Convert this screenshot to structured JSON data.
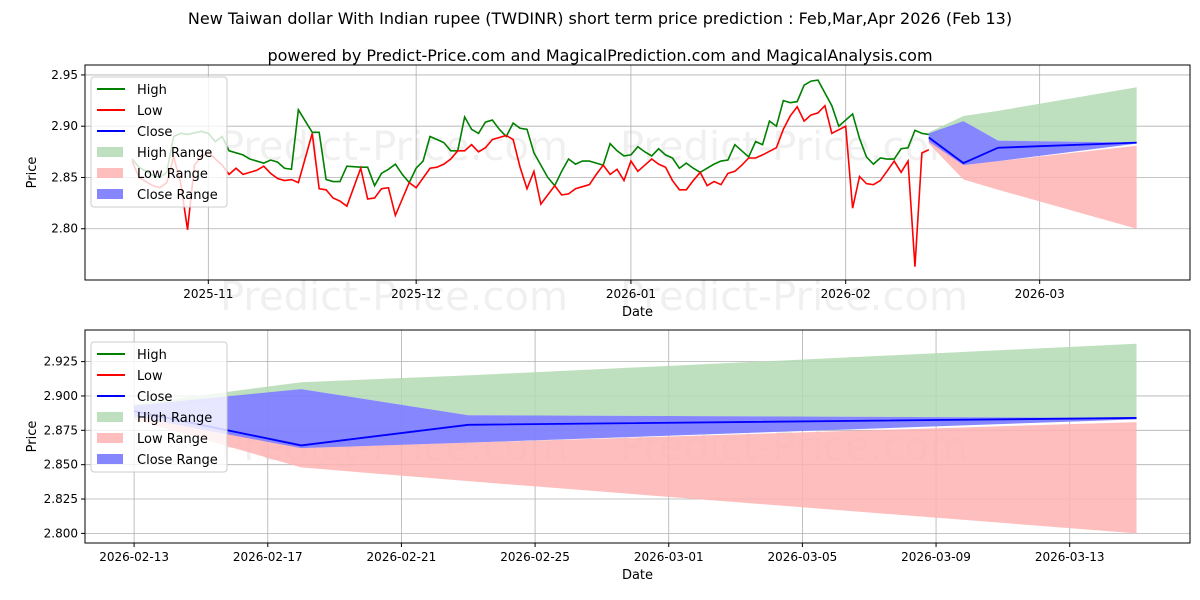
{
  "title": "New Taiwan dollar With Indian rupee (TWDINR) short term price prediction : Feb,Mar,Apr 2026 (Feb 13)",
  "subtitle": "powered by Predict-Price.com and MagicalPrediction.com and MagicalAnalysis.com",
  "watermark": "Predict-Price.com",
  "colors": {
    "high": "#008000",
    "low": "#ff0000",
    "close": "#0000ff",
    "high_range": "#b3dbb3",
    "low_range": "#ffb3b3",
    "close_range": "#7f7fff"
  },
  "chart_data": [
    {
      "type": "line",
      "x_unit": "days since 2025-10-21",
      "xlabel": "Date",
      "ylabel": "Price",
      "xlim": [
        -6.8,
        152.7
      ],
      "ylim": [
        2.75,
        2.9597
      ],
      "grid": true,
      "legend_placement": "top-left",
      "legend": [
        "High",
        "Low",
        "Close",
        "High Range",
        "Low Range",
        "Close Range"
      ],
      "x_ticks": [
        {
          "x": 11,
          "label": "2025-11"
        },
        {
          "x": 41,
          "label": "2025-12"
        },
        {
          "x": 72,
          "label": "2026-01"
        },
        {
          "x": 103,
          "label": "2026-02"
        },
        {
          "x": 131,
          "label": "2026-03"
        }
      ],
      "y_ticks": [
        {
          "y": 2.8,
          "label": "2.80"
        },
        {
          "y": 2.85,
          "label": "2.85"
        },
        {
          "y": 2.9,
          "label": "2.90"
        },
        {
          "y": 2.95,
          "label": "2.95"
        }
      ],
      "high": [
        [
          0,
          2.868
        ],
        [
          1,
          2.86
        ],
        [
          3,
          2.852
        ],
        [
          4,
          2.85
        ],
        [
          5,
          2.855
        ],
        [
          6,
          2.89
        ],
        [
          7,
          2.893
        ],
        [
          8,
          2.892
        ],
        [
          10,
          2.895
        ],
        [
          11,
          2.893
        ],
        [
          12,
          2.885
        ],
        [
          13,
          2.89
        ],
        [
          14,
          2.876
        ],
        [
          16,
          2.872
        ],
        [
          17,
          2.868
        ],
        [
          19,
          2.864
        ],
        [
          20,
          2.867
        ],
        [
          21,
          2.865
        ],
        [
          22,
          2.859
        ],
        [
          23,
          2.858
        ],
        [
          24,
          2.916
        ],
        [
          26,
          2.894
        ],
        [
          27,
          2.894
        ],
        [
          28,
          2.848
        ],
        [
          29,
          2.846
        ],
        [
          30,
          2.846
        ],
        [
          31,
          2.861
        ],
        [
          33,
          2.86
        ],
        [
          34,
          2.86
        ],
        [
          35,
          2.842
        ],
        [
          36,
          2.854
        ],
        [
          37,
          2.858
        ],
        [
          38,
          2.863
        ],
        [
          39,
          2.853
        ],
        [
          40,
          2.845
        ],
        [
          41,
          2.859
        ],
        [
          42,
          2.866
        ],
        [
          43,
          2.89
        ],
        [
          44,
          2.887
        ],
        [
          45,
          2.884
        ],
        [
          46,
          2.876
        ],
        [
          47,
          2.876
        ],
        [
          48,
          2.909
        ],
        [
          49,
          2.897
        ],
        [
          50,
          2.893
        ],
        [
          51,
          2.904
        ],
        [
          52,
          2.906
        ],
        [
          53,
          2.897
        ],
        [
          54,
          2.89
        ],
        [
          55,
          2.903
        ],
        [
          56,
          2.898
        ],
        [
          57,
          2.897
        ],
        [
          58,
          2.874
        ],
        [
          59,
          2.862
        ],
        [
          60,
          2.85
        ],
        [
          61,
          2.842
        ],
        [
          62,
          2.856
        ],
        [
          63,
          2.868
        ],
        [
          64,
          2.863
        ],
        [
          65,
          2.866
        ],
        [
          66,
          2.866
        ],
        [
          67,
          2.864
        ],
        [
          68,
          2.862
        ],
        [
          69,
          2.883
        ],
        [
          70,
          2.876
        ],
        [
          71,
          2.871
        ],
        [
          72,
          2.872
        ],
        [
          73,
          2.88
        ],
        [
          74,
          2.875
        ],
        [
          75,
          2.871
        ],
        [
          76,
          2.878
        ],
        [
          77,
          2.872
        ],
        [
          78,
          2.869
        ],
        [
          79,
          2.859
        ],
        [
          80,
          2.864
        ],
        [
          81,
          2.859
        ],
        [
          82,
          2.855
        ],
        [
          83,
          2.859
        ],
        [
          84,
          2.863
        ],
        [
          85,
          2.866
        ],
        [
          86,
          2.867
        ],
        [
          87,
          2.882
        ],
        [
          88,
          2.876
        ],
        [
          89,
          2.87
        ],
        [
          90,
          2.885
        ],
        [
          91,
          2.882
        ],
        [
          92,
          2.905
        ],
        [
          93,
          2.9
        ],
        [
          94,
          2.925
        ],
        [
          95,
          2.923
        ],
        [
          96,
          2.924
        ],
        [
          97,
          2.94
        ],
        [
          98,
          2.944
        ],
        [
          99,
          2.945
        ],
        [
          101,
          2.92
        ],
        [
          102,
          2.9
        ],
        [
          104,
          2.912
        ],
        [
          105,
          2.888
        ],
        [
          106,
          2.87
        ],
        [
          107,
          2.863
        ],
        [
          108,
          2.869
        ],
        [
          109,
          2.868
        ],
        [
          110,
          2.868
        ],
        [
          111,
          2.878
        ],
        [
          112,
          2.879
        ],
        [
          113,
          2.896
        ],
        [
          114,
          2.893
        ],
        [
          115,
          2.892
        ]
      ],
      "low": [
        [
          0,
          2.866
        ],
        [
          1,
          2.85
        ],
        [
          3,
          2.842
        ],
        [
          4,
          2.84
        ],
        [
          5,
          2.845
        ],
        [
          6,
          2.87
        ],
        [
          7,
          2.845
        ],
        [
          8,
          2.799
        ],
        [
          9,
          2.862
        ],
        [
          10,
          2.87
        ],
        [
          11,
          2.875
        ],
        [
          12,
          2.868
        ],
        [
          13,
          2.862
        ],
        [
          14,
          2.853
        ],
        [
          15,
          2.859
        ],
        [
          16,
          2.853
        ],
        [
          18,
          2.857
        ],
        [
          19,
          2.861
        ],
        [
          20,
          2.854
        ],
        [
          21,
          2.849
        ],
        [
          22,
          2.847
        ],
        [
          23,
          2.848
        ],
        [
          24,
          2.845
        ],
        [
          26,
          2.893
        ],
        [
          27,
          2.839
        ],
        [
          28,
          2.838
        ],
        [
          29,
          2.83
        ],
        [
          30,
          2.827
        ],
        [
          31,
          2.822
        ],
        [
          33,
          2.859
        ],
        [
          34,
          2.829
        ],
        [
          35,
          2.83
        ],
        [
          36,
          2.839
        ],
        [
          37,
          2.84
        ],
        [
          38,
          2.813
        ],
        [
          40,
          2.845
        ],
        [
          41,
          2.84
        ],
        [
          43,
          2.859
        ],
        [
          44,
          2.86
        ],
        [
          45,
          2.863
        ],
        [
          46,
          2.868
        ],
        [
          47,
          2.876
        ],
        [
          48,
          2.876
        ],
        [
          49,
          2.882
        ],
        [
          50,
          2.875
        ],
        [
          51,
          2.879
        ],
        [
          52,
          2.887
        ],
        [
          53,
          2.889
        ],
        [
          54,
          2.891
        ],
        [
          55,
          2.887
        ],
        [
          56,
          2.86
        ],
        [
          57,
          2.839
        ],
        [
          58,
          2.856
        ],
        [
          59,
          2.824
        ],
        [
          60,
          2.833
        ],
        [
          61,
          2.842
        ],
        [
          62,
          2.833
        ],
        [
          63,
          2.834
        ],
        [
          64,
          2.839
        ],
        [
          65,
          2.841
        ],
        [
          66,
          2.843
        ],
        [
          67,
          2.853
        ],
        [
          68,
          2.862
        ],
        [
          69,
          2.853
        ],
        [
          70,
          2.858
        ],
        [
          71,
          2.847
        ],
        [
          72,
          2.866
        ],
        [
          73,
          2.856
        ],
        [
          74,
          2.862
        ],
        [
          75,
          2.868
        ],
        [
          76,
          2.863
        ],
        [
          77,
          2.86
        ],
        [
          78,
          2.847
        ],
        [
          79,
          2.838
        ],
        [
          80,
          2.838
        ],
        [
          81,
          2.847
        ],
        [
          82,
          2.855
        ],
        [
          83,
          2.842
        ],
        [
          84,
          2.846
        ],
        [
          85,
          2.843
        ],
        [
          86,
          2.854
        ],
        [
          87,
          2.856
        ],
        [
          88,
          2.862
        ],
        [
          89,
          2.869
        ],
        [
          90,
          2.869
        ],
        [
          91,
          2.872
        ],
        [
          93,
          2.879
        ],
        [
          94,
          2.897
        ],
        [
          95,
          2.91
        ],
        [
          96,
          2.919
        ],
        [
          97,
          2.905
        ],
        [
          98,
          2.911
        ],
        [
          99,
          2.913
        ],
        [
          100,
          2.92
        ],
        [
          101,
          2.893
        ],
        [
          103,
          2.9
        ],
        [
          104,
          2.82
        ],
        [
          105,
          2.851
        ],
        [
          106,
          2.844
        ],
        [
          107,
          2.843
        ],
        [
          108,
          2.847
        ],
        [
          110,
          2.866
        ],
        [
          111,
          2.855
        ],
        [
          112,
          2.866
        ],
        [
          113,
          2.763
        ],
        [
          114,
          2.874
        ],
        [
          115,
          2.877
        ]
      ],
      "forecast_x": [
        115,
        120,
        125,
        145
      ]
    },
    {
      "type": "line",
      "x_unit": "days since 2026-02-13",
      "xlabel": "Date",
      "ylabel": "Price",
      "xlim": [
        -1.47,
        31.6
      ],
      "ylim": [
        2.793,
        2.948
      ],
      "grid": true,
      "legend_placement": "top-left",
      "legend": [
        "High",
        "Low",
        "Close",
        "High Range",
        "Low Range",
        "Close Range"
      ],
      "x_ticks": [
        {
          "x": 0,
          "label": "2026-02-13"
        },
        {
          "x": 4,
          "label": "2026-02-17"
        },
        {
          "x": 8,
          "label": "2026-02-21"
        },
        {
          "x": 12,
          "label": "2026-02-25"
        },
        {
          "x": 16,
          "label": "2026-03-01"
        },
        {
          "x": 20,
          "label": "2026-03-05"
        },
        {
          "x": 24,
          "label": "2026-03-09"
        },
        {
          "x": 28,
          "label": "2026-03-13"
        }
      ],
      "y_ticks": [
        {
          "y": 2.8,
          "label": "2.800"
        },
        {
          "y": 2.825,
          "label": "2.825"
        },
        {
          "y": 2.85,
          "label": "2.850"
        },
        {
          "y": 2.875,
          "label": "2.875"
        },
        {
          "y": 2.9,
          "label": "2.900"
        },
        {
          "y": 2.925,
          "label": "2.925"
        }
      ],
      "forecast_x": [
        0,
        5,
        10,
        30
      ]
    }
  ],
  "forecast": {
    "close": [
      2.889,
      2.864,
      2.879,
      2.884
    ],
    "high_range_upper": [
      2.894,
      2.91,
      2.915,
      2.938
    ],
    "high_range_lower": [
      2.889,
      2.905,
      2.886,
      2.884
    ],
    "low_range_upper": [
      2.889,
      2.862,
      2.866,
      2.881
    ],
    "low_range_lower": [
      2.883,
      2.848,
      2.838,
      2.8
    ],
    "close_range_upper": [
      2.893,
      2.905,
      2.886,
      2.884
    ],
    "close_range_lower": [
      2.885,
      2.862,
      2.866,
      2.883
    ]
  }
}
